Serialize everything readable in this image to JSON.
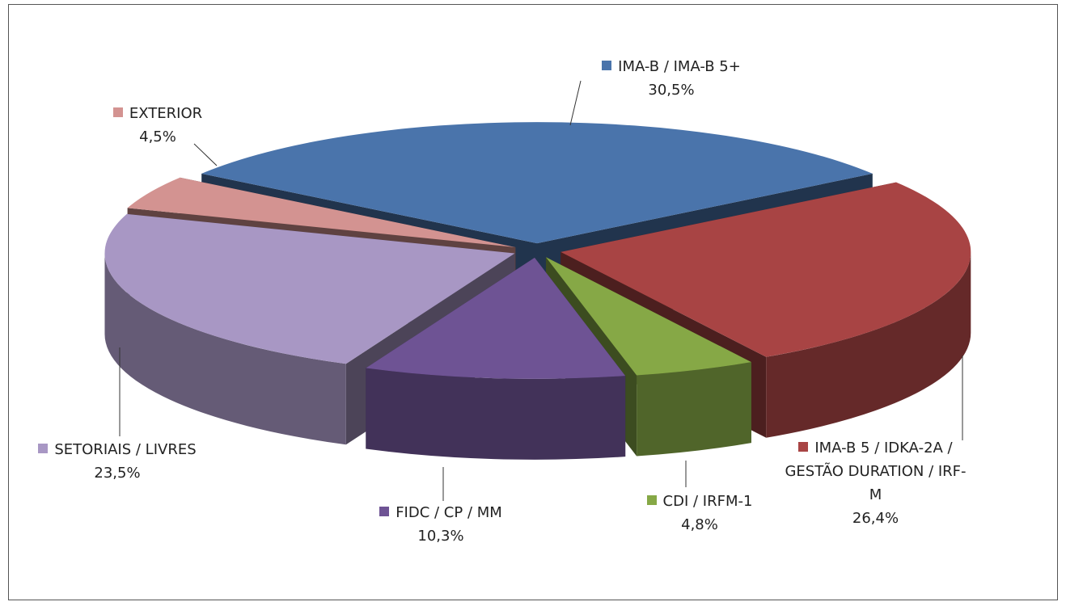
{
  "chart_data": {
    "type": "pie",
    "categories": [
      "IMA-B / IMA-B 5+",
      "IMA-B 5 / IDKA-2A / GESTÃO DURATION / IRF-M",
      "CDI / IRFM-1",
      "FIDC / CP / MM",
      "SETORIAIS / LIVRES",
      "EXTERIOR"
    ],
    "values": [
      30.5,
      26.4,
      4.8,
      10.3,
      23.5,
      4.5
    ],
    "value_labels": [
      "30,5%",
      "26,4%",
      "4,8%",
      "10,3%",
      "23,5%",
      "4,5%"
    ],
    "colors": [
      "#4a74ab",
      "#a84444",
      "#86a846",
      "#6e5394",
      "#a897c4",
      "#d39391"
    ]
  }
}
